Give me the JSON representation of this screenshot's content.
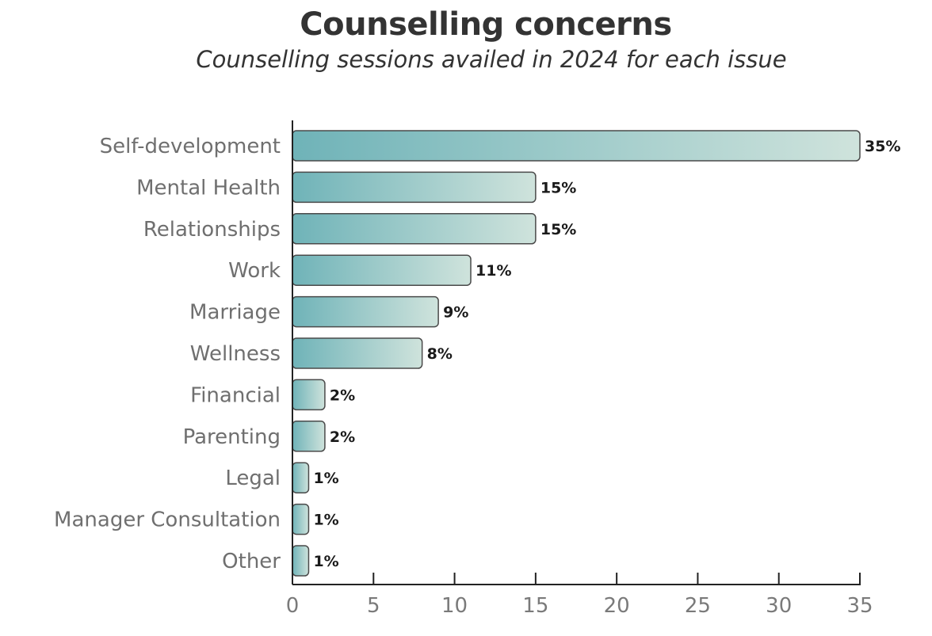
{
  "chart_data": {
    "type": "bar",
    "orientation": "horizontal",
    "title": "Counselling concerns",
    "subtitle": "Counselling sessions availed in 2024 for each issue",
    "xlabel": "",
    "ylabel": "",
    "categories": [
      "Self-development",
      "Mental Health",
      "Relationships",
      "Work",
      "Marriage",
      "Wellness",
      "Financial",
      "Parenting",
      "Legal",
      "Manager Consultation",
      "Other"
    ],
    "values": [
      35,
      15,
      15,
      11,
      9,
      8,
      2,
      2,
      1,
      1,
      1
    ],
    "data_labels": [
      "35%",
      "15%",
      "15%",
      "11%",
      "9%",
      "8%",
      "2%",
      "2%",
      "1%",
      "1%",
      "1%"
    ],
    "xlim": [
      0,
      35
    ],
    "xticks": [
      0,
      5,
      10,
      15,
      20,
      25,
      30,
      35
    ],
    "xtick_labels": [
      "0",
      "5",
      "10",
      "15",
      "20",
      "25",
      "30",
      "35"
    ],
    "grid": false,
    "colors": {
      "bar_start": "#6fb3b8",
      "bar_end": "#cfe3dc",
      "bar_stroke": "#4a4a4a",
      "axis": "#222222"
    }
  }
}
